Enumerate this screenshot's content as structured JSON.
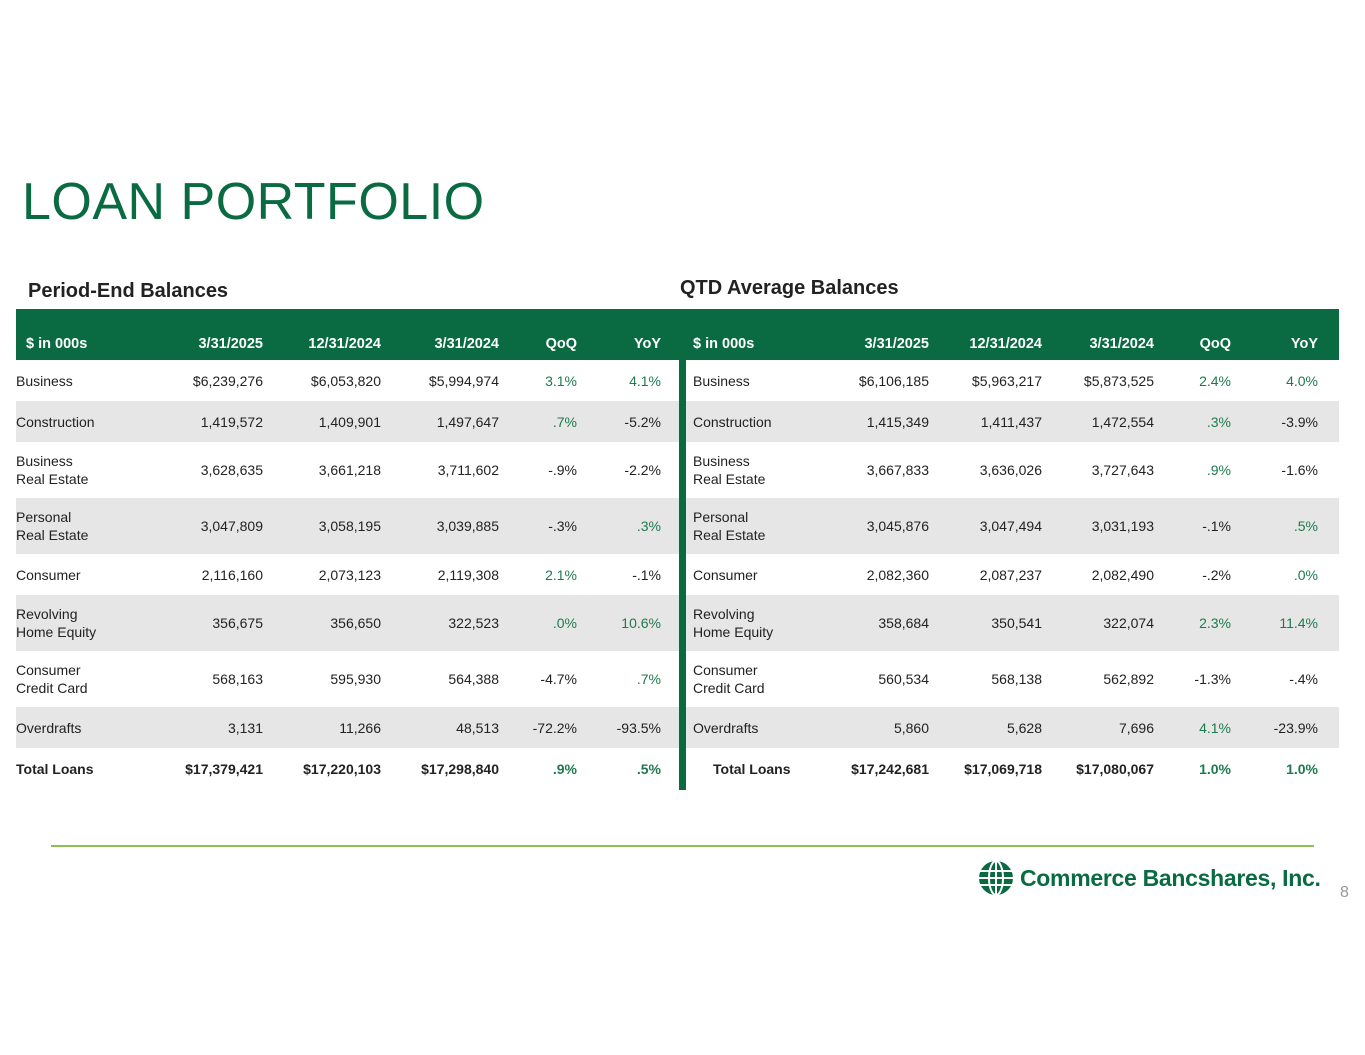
{
  "page": {
    "title": "LOAN PORTFOLIO",
    "page_number": "8"
  },
  "brand": {
    "logo_text": "Commerce Bancshares, Inc.",
    "primary_color": "#0a6b43",
    "accent_line_color": "#8cc152"
  },
  "left_table": {
    "section_title": "Period-End Balances",
    "headers": [
      "$ in 000s",
      "3/31/2025",
      "12/31/2024",
      "3/31/2024",
      "QoQ",
      "YoY"
    ],
    "rows": [
      {
        "label": [
          "Business"
        ],
        "v1": "$6,239,276",
        "v2": "$6,053,820",
        "v3": "$5,994,974",
        "qoq": "3.1%",
        "yoy": "4.1%"
      },
      {
        "label": [
          "Construction"
        ],
        "v1": "1,419,572",
        "v2": "1,409,901",
        "v3": "1,497,647",
        "qoq": ".7%",
        "yoy": "-5.2%"
      },
      {
        "label": [
          "Business",
          "Real Estate"
        ],
        "v1": "3,628,635",
        "v2": "3,661,218",
        "v3": "3,711,602",
        "qoq": "-.9%",
        "yoy": "-2.2%"
      },
      {
        "label": [
          "Personal",
          "Real Estate"
        ],
        "v1": "3,047,809",
        "v2": "3,058,195",
        "v3": "3,039,885",
        "qoq": "-.3%",
        "yoy": ".3%"
      },
      {
        "label": [
          "Consumer"
        ],
        "v1": "2,116,160",
        "v2": "2,073,123",
        "v3": "2,119,308",
        "qoq": "2.1%",
        "yoy": "-.1%"
      },
      {
        "label": [
          "Revolving",
          "Home Equity"
        ],
        "v1": "356,675",
        "v2": "356,650",
        "v3": "322,523",
        "qoq": ".0%",
        "yoy": "10.6%"
      },
      {
        "label": [
          "Consumer",
          "Credit Card"
        ],
        "v1": "568,163",
        "v2": "595,930",
        "v3": "564,388",
        "qoq": "-4.7%",
        "yoy": ".7%"
      },
      {
        "label": [
          "Overdrafts"
        ],
        "v1": "3,131",
        "v2": "11,266",
        "v3": "48,513",
        "qoq": "-72.2%",
        "yoy": "-93.5%"
      }
    ],
    "total": {
      "label": "Total Loans",
      "v1": "$17,379,421",
      "v2": "$17,220,103",
      "v3": "$17,298,840",
      "qoq": ".9%",
      "yoy": ".5%"
    }
  },
  "right_table": {
    "section_title": "QTD Average Balances",
    "headers": [
      "$ in 000s",
      "3/31/2025",
      "12/31/2024",
      "3/31/2024",
      "QoQ",
      "YoY"
    ],
    "rows": [
      {
        "label": [
          "Business"
        ],
        "v1": "$6,106,185",
        "v2": "$5,963,217",
        "v3": "$5,873,525",
        "qoq": "2.4%",
        "yoy": "4.0%"
      },
      {
        "label": [
          "Construction"
        ],
        "v1": "1,415,349",
        "v2": "1,411,437",
        "v3": "1,472,554",
        "qoq": ".3%",
        "yoy": "-3.9%"
      },
      {
        "label": [
          "Business",
          "Real Estate"
        ],
        "v1": "3,667,833",
        "v2": "3,636,026",
        "v3": "3,727,643",
        "qoq": ".9%",
        "yoy": "-1.6%"
      },
      {
        "label": [
          "Personal",
          "Real Estate"
        ],
        "v1": "3,045,876",
        "v2": "3,047,494",
        "v3": "3,031,193",
        "qoq": "-.1%",
        "yoy": ".5%"
      },
      {
        "label": [
          "Consumer"
        ],
        "v1": "2,082,360",
        "v2": "2,087,237",
        "v3": "2,082,490",
        "qoq": "-.2%",
        "yoy": ".0%"
      },
      {
        "label": [
          "Revolving",
          "Home Equity"
        ],
        "v1": "358,684",
        "v2": "350,541",
        "v3": "322,074",
        "qoq": "2.3%",
        "yoy": "11.4%"
      },
      {
        "label": [
          "Consumer",
          "Credit Card"
        ],
        "v1": "560,534",
        "v2": "568,138",
        "v3": "562,892",
        "qoq": "-1.3%",
        "yoy": "-.4%"
      },
      {
        "label": [
          "Overdrafts"
        ],
        "v1": "5,860",
        "v2": "5,628",
        "v3": "7,696",
        "qoq": "4.1%",
        "yoy": "-23.9%"
      }
    ],
    "total": {
      "label": "Total Loans",
      "v1": "$17,242,681",
      "v2": "$17,069,718",
      "v3": "$17,080,067",
      "qoq": "1.0%",
      "yoy": "1.0%"
    }
  }
}
